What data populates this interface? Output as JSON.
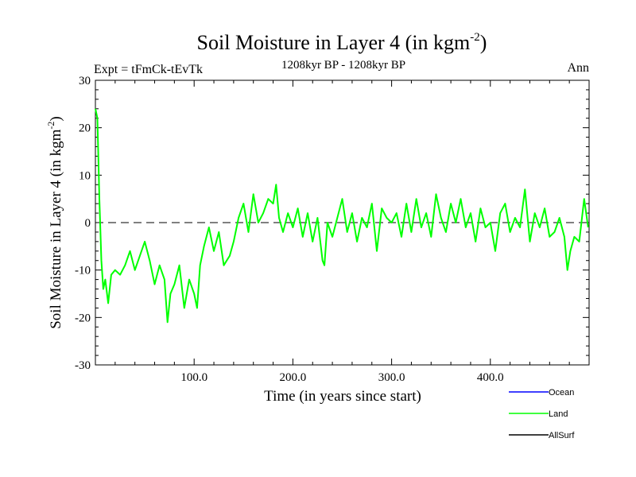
{
  "chart_data": {
    "type": "line",
    "title": "Soil Moisture in Layer 4 (in kgm",
    "title_sup": "-2",
    "title_close": ")",
    "subtitle": "1208kyr BP - 1208kyr BP",
    "left_annotation": "Expt = tFmCk-tEvTk",
    "right_annotation": "Ann",
    "xlabel": "Time (in years since start)",
    "ylabel": "Soil Moisture in Layer 4 (in kgm",
    "ylabel_sup": "-2",
    "ylabel_close": ")",
    "xlim": [
      0,
      500
    ],
    "ylim": [
      -30,
      30
    ],
    "x_ticks": [
      100,
      200,
      300,
      400
    ],
    "x_tick_labels": [
      "100.0",
      "200.0",
      "300.0",
      "400.0"
    ],
    "y_ticks": [
      -30,
      -20,
      -10,
      0,
      10,
      20,
      30
    ],
    "y_tick_labels": [
      "-30",
      "-20",
      "-10",
      "0",
      "10",
      "20",
      "30"
    ],
    "reference_line": {
      "y": 0,
      "style": "dashed"
    },
    "legend": [
      {
        "name": "Ocean",
        "color": "#0000ff"
      },
      {
        "name": "Land",
        "color": "#00ff00"
      },
      {
        "name": "AllSurf",
        "color": "#000000"
      }
    ],
    "series": [
      {
        "name": "Land",
        "color": "#00ff00",
        "x": [
          0,
          2,
          4,
          6,
          8,
          10,
          13,
          16,
          20,
          25,
          30,
          35,
          40,
          45,
          50,
          55,
          60,
          65,
          70,
          73,
          76,
          80,
          85,
          90,
          95,
          100,
          103,
          106,
          110,
          115,
          120,
          125,
          130,
          133,
          136,
          140,
          145,
          150,
          155,
          160,
          165,
          170,
          175,
          180,
          183,
          186,
          190,
          195,
          200,
          205,
          210,
          215,
          220,
          225,
          230,
          232,
          235,
          240,
          245,
          250,
          255,
          260,
          265,
          270,
          275,
          280,
          285,
          290,
          295,
          300,
          305,
          310,
          315,
          320,
          325,
          330,
          335,
          340,
          345,
          350,
          355,
          360,
          365,
          370,
          375,
          380,
          385,
          390,
          395,
          400,
          405,
          410,
          415,
          420,
          425,
          430,
          435,
          440,
          445,
          450,
          455,
          460,
          465,
          470,
          475,
          478,
          481,
          485,
          490,
          495,
          499
        ],
        "values": [
          24,
          22,
          5,
          -8,
          -14,
          -12,
          -17,
          -11,
          -10,
          -11,
          -9,
          -6,
          -10,
          -7,
          -4,
          -8,
          -13,
          -9,
          -12,
          -21,
          -15,
          -13,
          -9,
          -18,
          -12,
          -15,
          -18,
          -9,
          -5,
          -1,
          -6,
          -2,
          -9,
          -8,
          -7,
          -4,
          1,
          4,
          -2,
          6,
          0,
          2,
          5,
          4,
          8,
          1,
          -2,
          2,
          -1,
          3,
          -3,
          2,
          -4,
          1,
          -8,
          -9,
          0,
          -3,
          1,
          5,
          -2,
          2,
          -4,
          1,
          -1,
          4,
          -6,
          3,
          1,
          0,
          2,
          -3,
          4,
          -2,
          5,
          -1,
          2,
          -3,
          6,
          1,
          -2,
          4,
          0,
          5,
          -1,
          2,
          -4,
          3,
          -1,
          0,
          -6,
          2,
          4,
          -2,
          1,
          -1,
          7,
          -4,
          2,
          -1,
          3,
          -3,
          -2,
          1,
          -3,
          -10,
          -6,
          -3,
          -4,
          5,
          -1
        ]
      }
    ]
  }
}
